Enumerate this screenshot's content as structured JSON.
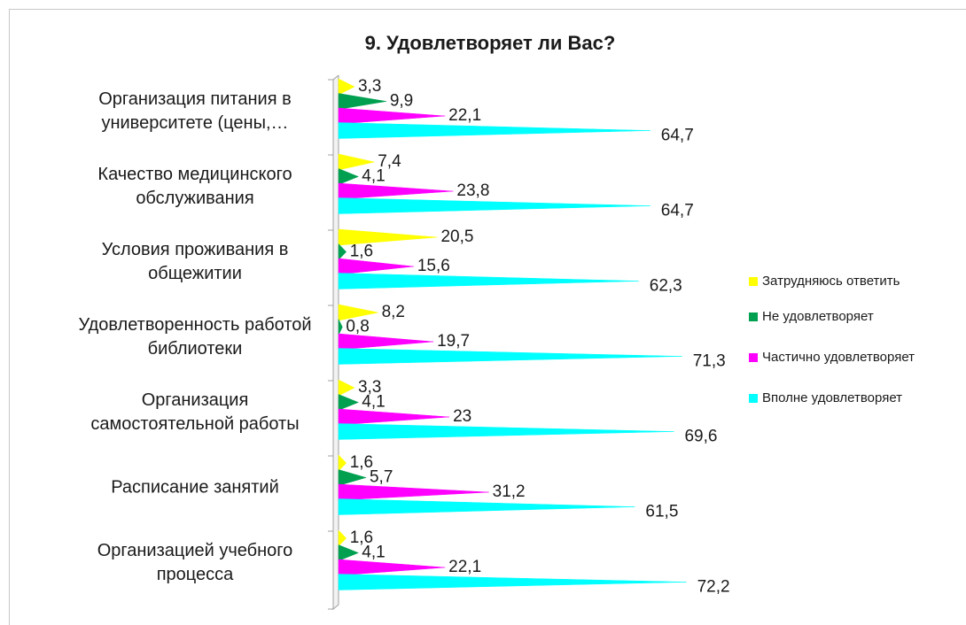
{
  "chart_data": {
    "type": "bar",
    "orientation": "horizontal",
    "shape": "cone",
    "title": "9. Удовлетворяет ли Вас?",
    "categories": [
      "Организация питания в университете (цены,…",
      "Качество медицинского обслуживания",
      "Условия проживания в общежитии",
      "Удовлетворенность работой библиотеки",
      "Организация самостоятельной работы",
      "Расписание занятий",
      "Организацией учебного процесса"
    ],
    "series": [
      {
        "name": "Затрудняюсь ответить",
        "color": "#ffff00",
        "values": [
          3.3,
          7.4,
          20.5,
          8.2,
          3.3,
          1.6,
          1.6
        ],
        "value_labels": [
          "3,3",
          "7,4",
          "20,5",
          "8,2",
          "3,3",
          "1,6",
          "1,6"
        ]
      },
      {
        "name": "Не удовлетворяет",
        "color": "#00a050",
        "values": [
          9.9,
          4.1,
          1.6,
          0.8,
          4.1,
          5.7,
          4.1
        ],
        "value_labels": [
          "9,9",
          "4,1",
          "1,6",
          "0,8",
          "4,1",
          "5,7",
          "4,1"
        ]
      },
      {
        "name": "Частично удовлетворяет",
        "color": "#ff00ff",
        "values": [
          22.1,
          23.8,
          15.6,
          19.7,
          23,
          31.2,
          22.1
        ],
        "value_labels": [
          "22,1",
          "23,8",
          "15,6",
          "19,7",
          "23",
          "31,2",
          "22,1"
        ]
      },
      {
        "name": "Вполне удовлетворяет",
        "color": "#00ffff",
        "values": [
          64.7,
          64.7,
          62.3,
          71.3,
          69.6,
          61.5,
          72.2
        ],
        "value_labels": [
          "64,7",
          "64,7",
          "62,3",
          "71,3",
          "69,6",
          "61,5",
          "72,2"
        ]
      }
    ],
    "xlim": [
      0,
      80
    ],
    "legend": "right"
  }
}
